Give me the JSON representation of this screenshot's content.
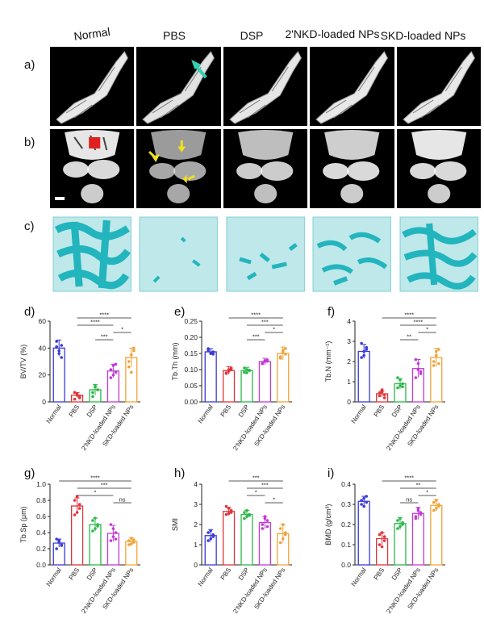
{
  "groups": [
    "Normal",
    "PBS",
    "DSP",
    "2'NKD-loaded NPs",
    "SKD-loaded NPs"
  ],
  "panels": {
    "a": "a)",
    "b": "b)",
    "c": "c)",
    "d": "d)",
    "e": "e)",
    "f": "f)",
    "g": "g)",
    "h": "h)",
    "i": "i)"
  },
  "colors": {
    "Normal": "#3a3ad6",
    "PBS": "#e0343a",
    "DSP": "#2bb84a",
    "2'NKD-loaded NPs": "#c23ad6",
    "SKD-loaded NPs": "#f0a33a",
    "trabecular": "#23b5bd",
    "cube_fill": "#bfe8ea",
    "arrow_cyan": "#2fd1b0",
    "arrow_yellow": "#f0e020",
    "roi_red": "#e02020"
  },
  "chart_data": [
    {
      "id": "d",
      "type": "bar",
      "ylabel": "BV/TV (%)",
      "categories": [
        "Normal",
        "PBS",
        "DSP",
        "2'NKD-loaded NPs",
        "SKD-loaded NPs"
      ],
      "values": [
        40,
        5,
        9,
        23,
        33
      ],
      "errors": [
        6,
        2,
        4,
        5,
        7
      ],
      "ylim": [
        0,
        60
      ],
      "yticks": [
        0,
        20,
        40,
        60
      ],
      "points": [
        [
          45,
          36,
          33,
          41,
          38,
          42
        ],
        [
          2,
          5,
          3,
          7,
          6,
          4
        ],
        [
          4,
          12,
          9,
          7,
          11,
          9
        ],
        [
          18,
          27,
          22,
          24,
          20,
          28
        ],
        [
          26,
          35,
          40,
          30,
          22,
          38
        ]
      ],
      "significance": [
        {
          "from": 1,
          "to": 4,
          "label": "****"
        },
        {
          "from": 1,
          "to": 3,
          "label": "****"
        },
        {
          "from": 3,
          "to": 4,
          "label": "*"
        },
        {
          "from": 2,
          "to": 3,
          "label": "***"
        }
      ]
    },
    {
      "id": "e",
      "type": "bar",
      "ylabel": "Tb.Th (mm)",
      "categories": [
        "Normal",
        "PBS",
        "DSP",
        "2'NKD-loaded NPs",
        "SKD-loaded NPs"
      ],
      "values": [
        0.155,
        0.097,
        0.097,
        0.125,
        0.15
      ],
      "errors": [
        0.01,
        0.012,
        0.01,
        0.01,
        0.02
      ],
      "ylim": [
        0,
        0.25
      ],
      "yticks": [
        0.0,
        0.05,
        0.1,
        0.15,
        0.2,
        0.25
      ],
      "points": [
        [
          0.16,
          0.15,
          0.155,
          0.165,
          0.15,
          0.148
        ],
        [
          0.09,
          0.1,
          0.105,
          0.088,
          0.095,
          0.1
        ],
        [
          0.092,
          0.1,
          0.098,
          0.105,
          0.09,
          0.097
        ],
        [
          0.12,
          0.128,
          0.13,
          0.118,
          0.125,
          0.126
        ],
        [
          0.14,
          0.16,
          0.165,
          0.135,
          0.155,
          0.148
        ]
      ],
      "significance": [
        {
          "from": 1,
          "to": 4,
          "label": "****"
        },
        {
          "from": 2,
          "to": 4,
          "label": "***"
        },
        {
          "from": 3,
          "to": 4,
          "label": "*"
        },
        {
          "from": 2,
          "to": 3,
          "label": "***"
        }
      ]
    },
    {
      "id": "f",
      "type": "bar",
      "ylabel": "Tb.N (mm⁻¹)",
      "categories": [
        "Normal",
        "PBS",
        "DSP",
        "2'NKD-loaded NPs",
        "SKD-loaded NPs"
      ],
      "values": [
        2.5,
        0.4,
        0.9,
        1.65,
        2.2
      ],
      "errors": [
        0.35,
        0.15,
        0.25,
        0.45,
        0.45
      ],
      "ylim": [
        0,
        4
      ],
      "yticks": [
        0,
        1,
        2,
        3,
        4
      ],
      "points": [
        [
          2.9,
          2.3,
          2.6,
          2.2,
          2.5,
          2.7
        ],
        [
          0.3,
          0.5,
          0.2,
          0.45,
          0.6,
          0.35
        ],
        [
          0.7,
          1.1,
          0.9,
          1.2,
          0.8,
          0.75
        ],
        [
          1.2,
          1.9,
          1.5,
          2.1,
          1.6,
          1.4
        ],
        [
          1.8,
          2.5,
          2.6,
          2.0,
          2.3,
          1.9
        ]
      ],
      "significance": [
        {
          "from": 1,
          "to": 4,
          "label": "****"
        },
        {
          "from": 2,
          "to": 4,
          "label": "****"
        },
        {
          "from": 3,
          "to": 4,
          "label": "*"
        },
        {
          "from": 2,
          "to": 3,
          "label": "**"
        }
      ]
    },
    {
      "id": "g",
      "type": "bar",
      "ylabel": "Tb.Sp (μm)",
      "categories": [
        "Normal",
        "PBS",
        "DSP",
        "2'NKD-loaded NPs",
        "SKD-loaded NPs"
      ],
      "values": [
        0.27,
        0.73,
        0.5,
        0.39,
        0.29
      ],
      "errors": [
        0.05,
        0.1,
        0.08,
        0.1,
        0.05
      ],
      "ylim": [
        0,
        1.0
      ],
      "yticks": [
        0.0,
        0.2,
        0.4,
        0.6,
        0.8,
        1.0
      ],
      "points": [
        [
          0.2,
          0.3,
          0.25,
          0.32,
          0.28,
          0.24
        ],
        [
          0.62,
          0.85,
          0.7,
          0.8,
          0.65,
          0.75
        ],
        [
          0.42,
          0.58,
          0.5,
          0.55,
          0.45,
          0.48
        ],
        [
          0.3,
          0.45,
          0.4,
          0.5,
          0.35,
          0.32
        ],
        [
          0.25,
          0.33,
          0.28,
          0.3,
          0.26,
          0.31
        ]
      ],
      "significance": [
        {
          "from": 0,
          "to": 4,
          "label": "****"
        },
        {
          "from": 1,
          "to": 4,
          "label": "***"
        },
        {
          "from": 1,
          "to": 3,
          "label": "*"
        },
        {
          "from": 3,
          "to": 4,
          "label": "ns"
        }
      ]
    },
    {
      "id": "h",
      "type": "bar",
      "ylabel": "SMI",
      "categories": [
        "Normal",
        "PBS",
        "DSP",
        "2'NKD-loaded NPs",
        "SKD-loaded NPs"
      ],
      "values": [
        1.45,
        2.65,
        2.5,
        2.1,
        1.55
      ],
      "errors": [
        0.3,
        0.2,
        0.2,
        0.3,
        0.45
      ],
      "ylim": [
        0,
        4
      ],
      "yticks": [
        0,
        1,
        2,
        3,
        4
      ],
      "points": [
        [
          1.2,
          1.7,
          1.4,
          1.6,
          1.3,
          1.5
        ],
        [
          2.5,
          2.8,
          2.6,
          2.9,
          2.55,
          2.7
        ],
        [
          2.3,
          2.7,
          2.5,
          2.6,
          2.4,
          2.45
        ],
        [
          1.8,
          2.4,
          2.2,
          2.0,
          2.3,
          1.9
        ],
        [
          1.1,
          2.0,
          1.5,
          1.8,
          1.3,
          1.6
        ]
      ],
      "significance": [
        {
          "from": 1,
          "to": 4,
          "label": "***"
        },
        {
          "from": 2,
          "to": 4,
          "label": "***"
        },
        {
          "from": 2,
          "to": 3,
          "label": "*"
        },
        {
          "from": 3,
          "to": 4,
          "label": "*"
        }
      ]
    },
    {
      "id": "i",
      "type": "bar",
      "ylabel": "BMD (g/cm³)",
      "categories": [
        "Normal",
        "PBS",
        "DSP",
        "2'NKD-loaded NPs",
        "SKD-loaded NPs"
      ],
      "values": [
        0.315,
        0.13,
        0.205,
        0.255,
        0.295
      ],
      "errors": [
        0.025,
        0.03,
        0.03,
        0.03,
        0.03
      ],
      "ylim": [
        0,
        0.4
      ],
      "yticks": [
        0.0,
        0.1,
        0.2,
        0.3,
        0.4
      ],
      "points": [
        [
          0.3,
          0.33,
          0.31,
          0.32,
          0.29,
          0.34
        ],
        [
          0.1,
          0.16,
          0.12,
          0.15,
          0.09,
          0.14
        ],
        [
          0.18,
          0.23,
          0.2,
          0.22,
          0.19,
          0.21
        ],
        [
          0.23,
          0.28,
          0.26,
          0.24,
          0.27,
          0.25
        ],
        [
          0.27,
          0.32,
          0.3,
          0.31,
          0.28,
          0.29
        ]
      ],
      "significance": [
        {
          "from": 1,
          "to": 4,
          "label": "****"
        },
        {
          "from": 2,
          "to": 4,
          "label": "**"
        },
        {
          "from": 3,
          "to": 4,
          "label": "*"
        },
        {
          "from": 2,
          "to": 3,
          "label": "ns"
        }
      ]
    }
  ]
}
